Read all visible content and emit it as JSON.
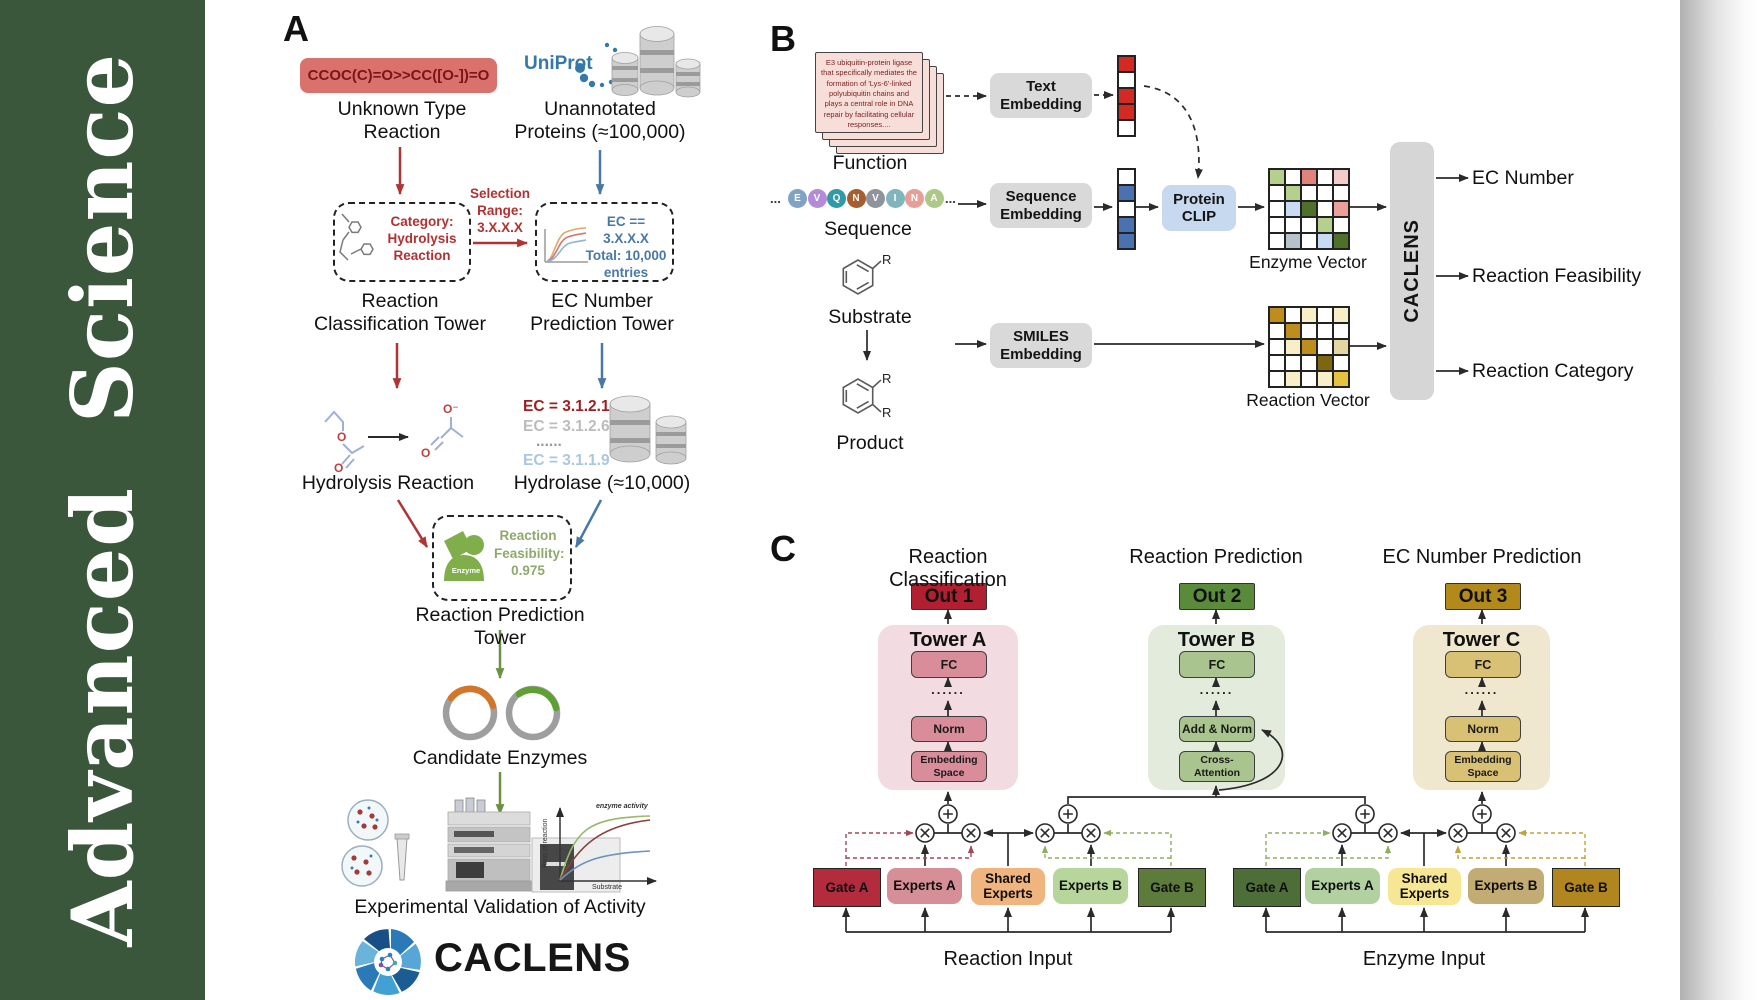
{
  "sidebar": {
    "journal": "Advanced Science"
  },
  "panelA": {
    "label": "A",
    "smiles": "CCOC(C)=O>>CC([O-])=O",
    "unknown_reaction": "Unknown Type\nReaction",
    "uniprot": "UniProt",
    "unannotated": "Unannotated\nProteins (≈100,000)",
    "selection_range": "Selection\nRange:\n3.X.X.X",
    "category_box": "Category:\nHydrolysis\nReaction",
    "ec_box": "EC == 3.X.X.X\nTotal: 10,000\nentries",
    "tower_classification": "Reaction\nClassification Tower",
    "tower_ec": "EC Number\nPrediction Tower",
    "hydrolysis": "Hydrolysis Reaction",
    "ec_list": [
      "EC = 3.1.2.1",
      "EC = 3.1.2.6",
      "......",
      "EC = 3.1.1.9"
    ],
    "hydrolase": "Hydrolase (≈10,000)",
    "enzyme_badge": "Enzyme",
    "feasibility": "Reaction\nFeasibility:\n0.975",
    "tower_prediction": "Reaction Prediction Tower",
    "candidates": "Candidate Enzymes",
    "validation": "Experimental Validation of Activity",
    "graph": {
      "ylabel": "Rate of reaction",
      "xlabel": "Substrate",
      "note": "enzyme activity"
    },
    "molecule": {
      "o": "O",
      "o_minus": "O⁻"
    },
    "logo": "CACLENS"
  },
  "panelB": {
    "label": "B",
    "function_card": "E3 ubiquitin-protein ligase that specifically mediates the formation of 'Lys-6'-linked polyubiquitin chains and plays a central role in DNA repair by facilitating cellular responses....",
    "function_label": "Function",
    "ellipsis": "...",
    "sequence": [
      {
        "ch": "E",
        "color": "#7fa3c4"
      },
      {
        "ch": "V",
        "color": "#b48bd8"
      },
      {
        "ch": "Q",
        "color": "#2f9aa8"
      },
      {
        "ch": "N",
        "color": "#a65e2e"
      },
      {
        "ch": "V",
        "color": "#8f949c"
      },
      {
        "ch": "I",
        "color": "#7fb5bb"
      },
      {
        "ch": "N",
        "color": "#e79e97"
      },
      {
        "ch": "A",
        "color": "#aec887"
      }
    ],
    "sequence_label": "Sequence",
    "substrate_label": "Substrate",
    "product_label": "Product",
    "r_label": "R",
    "text_embedding": "Text Embedding",
    "sequence_embedding": "Sequence Embedding",
    "smiles_embedding": "SMILES Embedding",
    "protein_clip": "Protein CLIP",
    "enzyme_vector_label": "Enzyme Vector",
    "reaction_vector_label": "Reaction Vector",
    "caclens": "CACLENS",
    "outputs": [
      "EC Number",
      "Reaction Feasibility",
      "Reaction Category"
    ],
    "text_vector_cells": [
      "#d42a24",
      "#ffffff",
      "#d42a24",
      "#d42a24",
      "#ffffff"
    ],
    "seq_vector_cells": [
      "#ffffff",
      "#4a72b0",
      "#ffffff",
      "#4a72b0",
      "#4a72b0"
    ],
    "enzyme_vector_cells": [
      [
        "#b5d08d",
        "#ffffff",
        "#e0837c",
        "#ffffff",
        "#f2cdca"
      ],
      [
        "#ffffff",
        "#b5d08d",
        "#ffffff",
        "#ffffff",
        "#ffffff"
      ],
      [
        "#ffffff",
        "#c9dbf2",
        "#4e7029",
        "#ffffff",
        "#eb9f9b"
      ],
      [
        "#ffffff",
        "#ffffff",
        "#ffffff",
        "#b5d08d",
        "#ffffff"
      ],
      [
        "#ffffff",
        "#b7c3cb",
        "#ffffff",
        "#c9dbf2",
        "#4e7029"
      ]
    ],
    "reaction_vector_cells": [
      [
        "#bd8d1e",
        "#ffffff",
        "#f8efc8",
        "#ffffff",
        "#f8efc8"
      ],
      [
        "#ffffff",
        "#bd8d1e",
        "#ffffff",
        "#ffffff",
        "#ffffff"
      ],
      [
        "#ffffff",
        "#f8efc8",
        "#bd8d1e",
        "#ffffff",
        "#e3d6a2"
      ],
      [
        "#ffffff",
        "#ffffff",
        "#ffffff",
        "#7c660f",
        "#ffffff"
      ],
      [
        "#ffffff",
        "#f8efc8",
        "#ffffff",
        "#f8efc8",
        "#e6c23f"
      ]
    ]
  },
  "panelC": {
    "label": "C",
    "towers": [
      {
        "header": "Reaction Classification",
        "out": "Out 1",
        "title": "Tower A",
        "fc": "FC",
        "dots": "......",
        "mid": "Norm",
        "bottom": "Embedding\nSpace"
      },
      {
        "header": "Reaction Prediction",
        "out": "Out 2",
        "title": "Tower B",
        "fc": "FC",
        "dots": "......",
        "mid": "Add & Norm",
        "bottom": "Cross-\nAttention"
      },
      {
        "header": "EC Number Prediction",
        "out": "Out 3",
        "title": "Tower C",
        "fc": "FC",
        "dots": "......",
        "mid": "Norm",
        "bottom": "Embedding\nSpace"
      }
    ],
    "moe": [
      {
        "gate_a": "Gate A",
        "experts_a": "Experts A",
        "shared": "Shared\nExperts",
        "experts_b": "Experts B",
        "gate_b": "Gate B",
        "input": "Reaction Input"
      },
      {
        "gate_a": "Gate A",
        "experts_a": "Experts A",
        "shared": "Shared\nExperts",
        "experts_b": "Experts B",
        "gate_b": "Gate B",
        "input": "Enzyme Input"
      }
    ]
  }
}
